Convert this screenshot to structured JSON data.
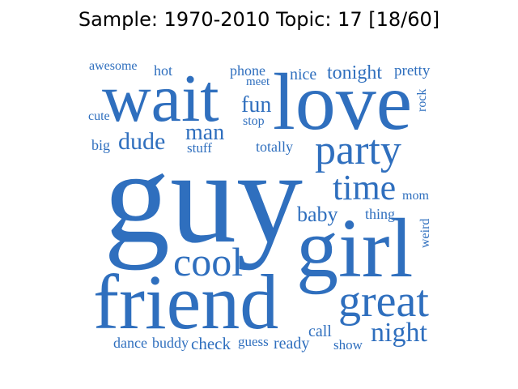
{
  "title": "Sample: 1970-2010 Topic: 17 [18/60]",
  "colors": {
    "word": "#2f6fbe",
    "title": "#000000",
    "background": "#ffffff"
  },
  "words": [
    "awesome",
    "hot",
    "phone",
    "meet",
    "nice",
    "tonight",
    "pretty",
    "wait",
    "love",
    "fun",
    "stop",
    "cute",
    "rock",
    "big",
    "dude",
    "man",
    "stuff",
    "totally",
    "party",
    "guy",
    "time",
    "mom",
    "baby",
    "thing",
    "weird",
    "girl",
    "cool",
    "friend",
    "great",
    "night",
    "call",
    "dance",
    "buddy",
    "check",
    "guess",
    "ready",
    "show"
  ]
}
